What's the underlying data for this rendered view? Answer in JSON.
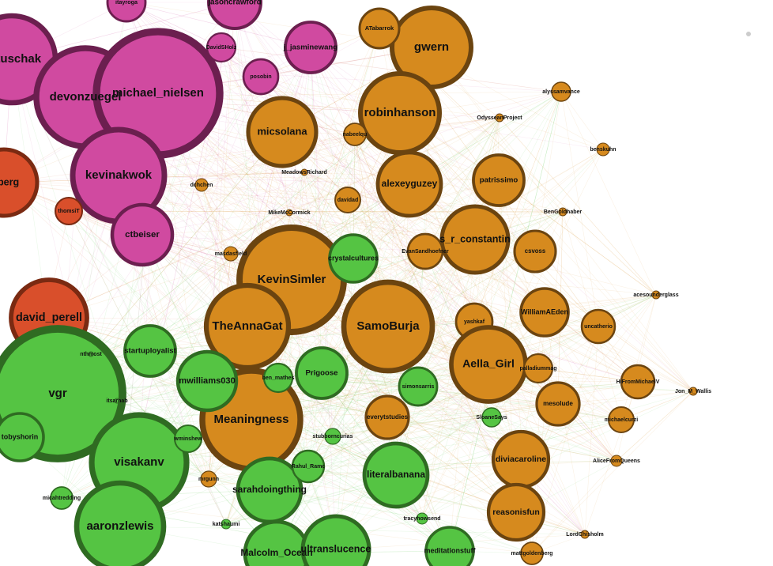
{
  "nodes": [
    {
      "label": "natuschak"
    },
    {
      "label": "devonzuegel"
    },
    {
      "label": "michael_nielsen"
    },
    {
      "label": "kevinakwok"
    },
    {
      "label": "ctbeiser"
    },
    {
      "label": "jasoncrawford"
    },
    {
      "label": "itayroga"
    },
    {
      "label": "j_jasminewang"
    },
    {
      "label": "posobin"
    },
    {
      "label": "DavidSHolz"
    },
    {
      "label": "mberg"
    },
    {
      "label": "thomsiT"
    },
    {
      "label": "david_perell"
    },
    {
      "label": "gwern"
    },
    {
      "label": "ATabarrok"
    },
    {
      "label": "robinhanson"
    },
    {
      "label": "micsolana"
    },
    {
      "label": "alexeyguzey"
    },
    {
      "label": "patrissimo"
    },
    {
      "label": "s_r_constantin"
    },
    {
      "label": "csvoss"
    },
    {
      "label": "EvanSandhoefner"
    },
    {
      "label": "KevinSimler"
    },
    {
      "label": "TheAnnaGat"
    },
    {
      "label": "SamoBurja"
    },
    {
      "label": "Meaningness"
    },
    {
      "label": "yashkaf"
    },
    {
      "label": "WilliamAEden"
    },
    {
      "label": "Aella_Girl"
    },
    {
      "label": "uncatherio"
    },
    {
      "label": "HiFromMichaelV"
    },
    {
      "label": "mesolude"
    },
    {
      "label": "palladiummag"
    },
    {
      "label": "michaelcurzi"
    },
    {
      "label": "diviacaroline"
    },
    {
      "label": "reasonisfun"
    },
    {
      "label": "everytstudies"
    },
    {
      "label": "davidad"
    },
    {
      "label": "nabeelqu"
    },
    {
      "label": "alyssamvance"
    },
    {
      "label": "benskuhn"
    },
    {
      "label": "mattgoldenberg"
    },
    {
      "label": "crystalcultures"
    },
    {
      "label": "vgr"
    },
    {
      "label": "tobyshorin"
    },
    {
      "label": "visakanv"
    },
    {
      "label": "aaronzlewis"
    },
    {
      "label": "startuployalist"
    },
    {
      "label": "mwilliams030"
    },
    {
      "label": "Prigoose"
    },
    {
      "label": "simonsarris"
    },
    {
      "label": "sarahdoingthing"
    },
    {
      "label": "Rahul_Ramc"
    },
    {
      "label": "literalbanana"
    },
    {
      "label": "Malcolm_Ocean"
    },
    {
      "label": "ultranslucence"
    },
    {
      "label": "meditationstuff"
    },
    {
      "label": "micahtredding"
    },
    {
      "label": "SloaneSays"
    },
    {
      "label": "ben_mathes"
    },
    {
      "label": "wminshew"
    },
    {
      "label": "Jon_M_Wallis"
    },
    {
      "label": "acesounderglass"
    },
    {
      "label": "AliceFromQueens"
    },
    {
      "label": "LordChisholm"
    },
    {
      "label": "BenGoldhaber"
    },
    {
      "label": "OdysseanProject"
    },
    {
      "label": "MeadowsRichard"
    },
    {
      "label": "MikeMcCormick"
    },
    {
      "label": "masdasfield"
    },
    {
      "label": "dchchen"
    },
    {
      "label": "tracyhowsend"
    },
    {
      "label": "stubborncurias"
    },
    {
      "label": "mrgunn"
    },
    {
      "label": "katshaumi"
    },
    {
      "label": "nthmost"
    },
    {
      "label": "itsarnab"
    }
  ]
}
